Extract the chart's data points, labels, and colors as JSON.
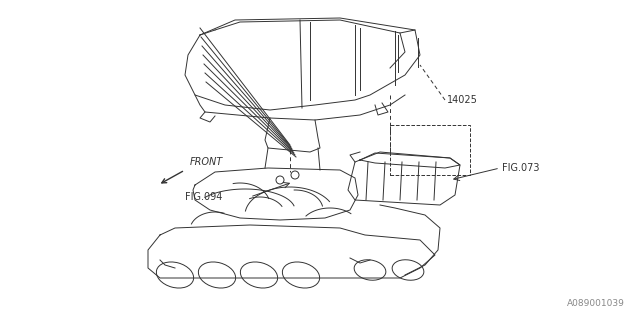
{
  "bg_color": "#ffffff",
  "line_color": "#333333",
  "label_14025": "14025",
  "label_fig073": "FIG.073",
  "label_fig094": "FIG.094",
  "label_front": "FRONT",
  "label_code": "A089001039",
  "lw": 0.7
}
